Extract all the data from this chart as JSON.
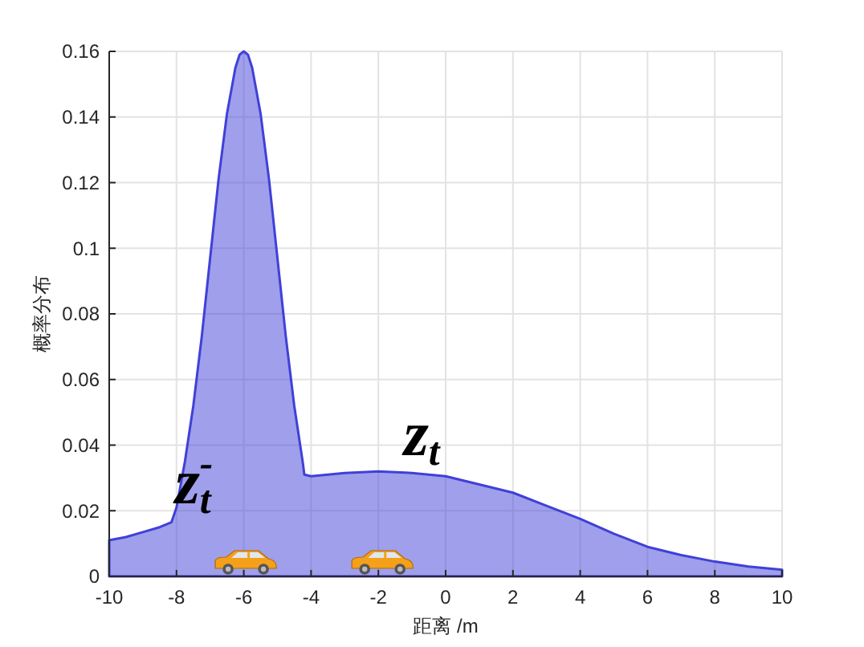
{
  "chart_data": {
    "type": "area",
    "xlabel": "距离 /m",
    "ylabel": "概率分布",
    "x": [
      -10,
      -9.5,
      -9,
      -8.5,
      -8.15,
      -8,
      -7.75,
      -7.5,
      -7.25,
      -7,
      -6.75,
      -6.5,
      -6.25,
      -6.125,
      -6,
      -5.875,
      -5.75,
      -5.5,
      -5.25,
      -5,
      -4.75,
      -4.5,
      -4.25,
      -4.2,
      -4,
      -3,
      -2,
      -1,
      0,
      1,
      2,
      3,
      4,
      5,
      6,
      7,
      8,
      9,
      10
    ],
    "values": [
      0.011,
      0.012,
      0.0135,
      0.015,
      0.0165,
      0.021,
      0.035,
      0.052,
      0.073,
      0.097,
      0.121,
      0.141,
      0.155,
      0.159,
      0.16,
      0.159,
      0.155,
      0.141,
      0.121,
      0.097,
      0.073,
      0.052,
      0.035,
      0.031,
      0.0305,
      0.0315,
      0.032,
      0.0315,
      0.0305,
      0.028,
      0.0255,
      0.0215,
      0.0175,
      0.013,
      0.009,
      0.0065,
      0.0045,
      0.003,
      0.002
    ],
    "color": "#4040d8",
    "xlim": [
      -10,
      10
    ],
    "ylim": [
      0,
      0.16
    ],
    "xticks": [
      -10,
      -8,
      -6,
      -4,
      -2,
      0,
      2,
      4,
      6,
      8,
      10
    ],
    "yticks": [
      0,
      0.02,
      0.04,
      0.06,
      0.08,
      0.1,
      0.12,
      0.14,
      0.16
    ],
    "grid": true,
    "annotations": [
      {
        "text": "z$_{t}$$^{-}$",
        "x": -8.05,
        "y": 0.017
      },
      {
        "text": "z$_{t}$",
        "x": -1.25,
        "y": 0.0315
      }
    ]
  }
}
